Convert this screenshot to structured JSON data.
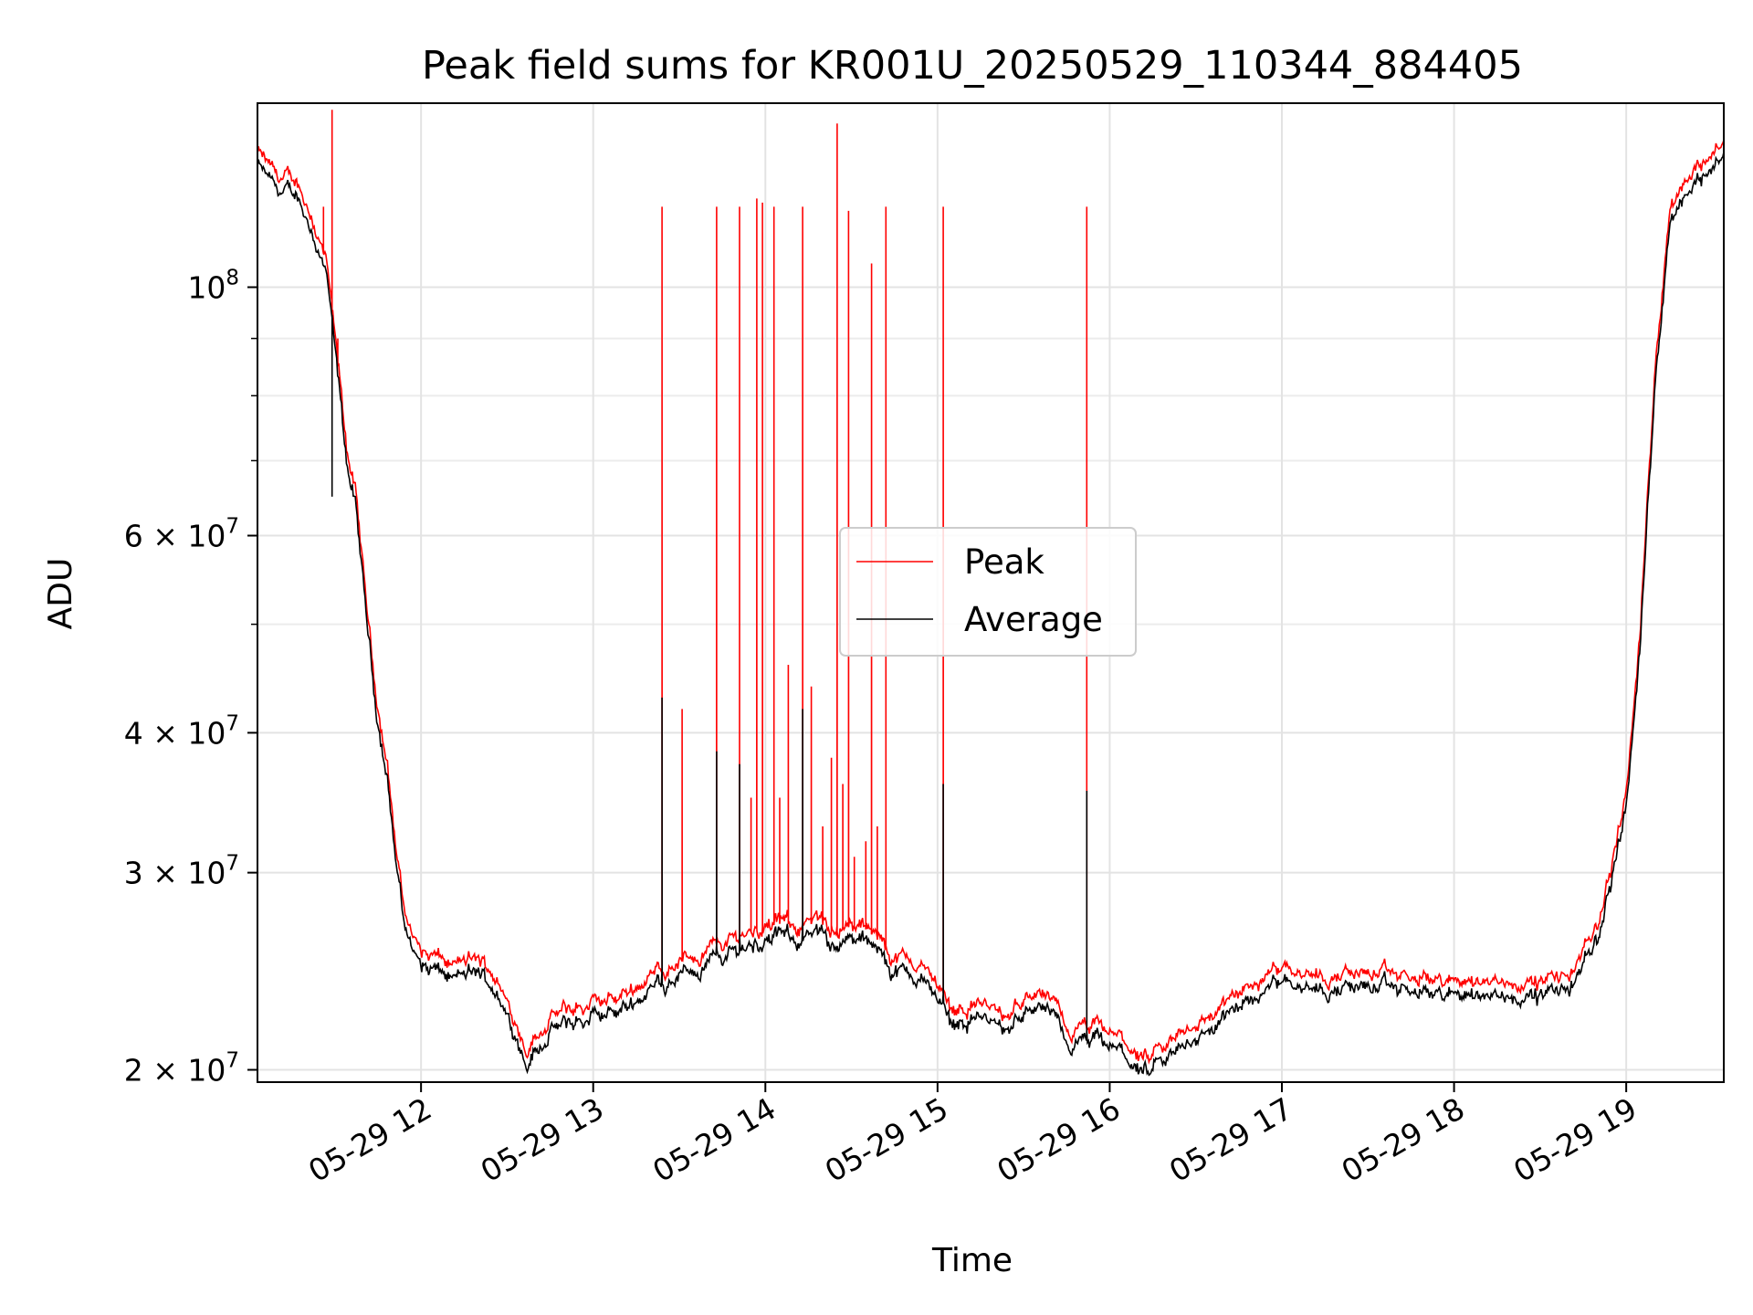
{
  "chart_data": {
    "type": "line",
    "title": "Peak field sums for KR001U_20250529_110344_884405",
    "xlabel": "Time",
    "ylabel": "ADU",
    "yscale": "log",
    "xlim": [
      "2025-05-29 11:03",
      "2025-05-29 19:34"
    ],
    "ylim": [
      19500000,
      146000000
    ],
    "grid": true,
    "legend_position": "center",
    "x_ticks": [
      "05-29 12",
      "05-29 13",
      "05-29 14",
      "05-29 15",
      "05-29 16",
      "05-29 17",
      "05-29 18",
      "05-29 19"
    ],
    "y_ticks": [
      {
        "value": 20000000,
        "label": "2 × 10^7",
        "mantissa": "2",
        "exponent": "7"
      },
      {
        "value": 30000000,
        "label": "3 × 10^7",
        "mantissa": "3",
        "exponent": "7"
      },
      {
        "value": 40000000,
        "label": "4 × 10^7",
        "mantissa": "4",
        "exponent": "7"
      },
      {
        "value": 60000000,
        "label": "6 × 10^7",
        "mantissa": "6",
        "exponent": "7"
      },
      {
        "value": 100000000,
        "label": "10^8",
        "mantissa": "",
        "exponent": "8"
      }
    ],
    "series": [
      {
        "name": "Peak",
        "color": "#ff0000",
        "baseline": [
          [
            "2025-05-29 11:03",
            132000000
          ],
          [
            "2025-05-29 11:10",
            125000000
          ],
          [
            "2025-05-29 11:17",
            124000000
          ],
          [
            "2025-05-29 11:22",
            116000000
          ],
          [
            "2025-05-29 11:27",
            105000000
          ],
          [
            "2025-05-29 11:31",
            85000000
          ],
          [
            "2025-05-29 11:34",
            72000000
          ],
          [
            "2025-05-29 11:37",
            66000000
          ],
          [
            "2025-05-29 11:40",
            55000000
          ],
          [
            "2025-05-29 11:44",
            44000000
          ],
          [
            "2025-05-29 11:48",
            38000000
          ],
          [
            "2025-05-29 11:51",
            32000000
          ],
          [
            "2025-05-29 11:54",
            28000000
          ],
          [
            "2025-05-29 11:57",
            26500000
          ],
          [
            "2025-05-29 12:00",
            25500000
          ],
          [
            "2025-05-29 12:10",
            24800000
          ],
          [
            "2025-05-29 12:20",
            25000000
          ],
          [
            "2025-05-29 12:25",
            24500000
          ],
          [
            "2025-05-29 12:30",
            23000000
          ],
          [
            "2025-05-29 12:37",
            21000000
          ],
          [
            "2025-05-29 12:45",
            22300000
          ],
          [
            "2025-05-29 12:55",
            22700000
          ],
          [
            "2025-05-29 13:05",
            23000000
          ],
          [
            "2025-05-29 13:15",
            23800000
          ],
          [
            "2025-05-29 13:25",
            24700000
          ],
          [
            "2025-05-29 13:35",
            25300000
          ],
          [
            "2025-05-29 13:45",
            26000000
          ],
          [
            "2025-05-29 13:55",
            26700000
          ],
          [
            "2025-05-29 14:05",
            27000000
          ],
          [
            "2025-05-29 14:15",
            27000000
          ],
          [
            "2025-05-29 14:25",
            26900000
          ],
          [
            "2025-05-29 14:35",
            26700000
          ],
          [
            "2025-05-29 14:40",
            26000000
          ],
          [
            "2025-05-29 14:45",
            25300000
          ],
          [
            "2025-05-29 14:55",
            24700000
          ],
          [
            "2025-05-29 15:00",
            23900000
          ],
          [
            "2025-05-29 15:05",
            22700000
          ],
          [
            "2025-05-29 15:15",
            23000000
          ],
          [
            "2025-05-29 15:25",
            22000000
          ],
          [
            "2025-05-29 15:30",
            23500000
          ],
          [
            "2025-05-29 15:40",
            23000000
          ],
          [
            "2025-05-29 15:45",
            21500000
          ],
          [
            "2025-05-29 15:55",
            21800000
          ],
          [
            "2025-05-29 16:05",
            21200000
          ],
          [
            "2025-05-29 16:14",
            20200000
          ],
          [
            "2025-05-29 16:25",
            21600000
          ],
          [
            "2025-05-29 16:40",
            22800000
          ],
          [
            "2025-05-29 16:55",
            24300000
          ],
          [
            "2025-05-29 17:00",
            25000000
          ],
          [
            "2025-05-29 17:15",
            24300000
          ],
          [
            "2025-05-29 17:30",
            24400000
          ],
          [
            "2025-05-29 17:45",
            24100000
          ],
          [
            "2025-05-29 18:00",
            24000000
          ],
          [
            "2025-05-29 18:15",
            24000000
          ],
          [
            "2025-05-29 18:30",
            23900000
          ],
          [
            "2025-05-29 18:40",
            24300000
          ],
          [
            "2025-05-29 18:45",
            25300000
          ],
          [
            "2025-05-29 18:50",
            27000000
          ],
          [
            "2025-05-29 18:55",
            30500000
          ],
          [
            "2025-05-29 19:00",
            35500000
          ],
          [
            "2025-05-29 19:05",
            50000000
          ],
          [
            "2025-05-29 19:10",
            85000000
          ],
          [
            "2025-05-29 19:15",
            117000000
          ],
          [
            "2025-05-29 19:20",
            125000000
          ],
          [
            "2025-05-29 19:25",
            128000000
          ],
          [
            "2025-05-29 19:30",
            133000000
          ],
          [
            "2025-05-29 19:34",
            134000000
          ]
        ],
        "spikes": [
          [
            "2025-05-29 11:26",
            118000000
          ],
          [
            "2025-05-29 11:29",
            144000000
          ],
          [
            "2025-05-29 11:31",
            90000000
          ],
          [
            "2025-05-29 13:24",
            118000000
          ],
          [
            "2025-05-29 13:31",
            42000000
          ],
          [
            "2025-05-29 13:43",
            118000000
          ],
          [
            "2025-05-29 13:51",
            118000000
          ],
          [
            "2025-05-29 13:55",
            35000000
          ],
          [
            "2025-05-29 13:57",
            120000000
          ],
          [
            "2025-05-29 13:59",
            119000000
          ],
          [
            "2025-05-29 14:03",
            118000000
          ],
          [
            "2025-05-29 14:05",
            35000000
          ],
          [
            "2025-05-29 14:08",
            46000000
          ],
          [
            "2025-05-29 14:13",
            118000000
          ],
          [
            "2025-05-29 14:16",
            44000000
          ],
          [
            "2025-05-29 14:20",
            33000000
          ],
          [
            "2025-05-29 14:23",
            38000000
          ],
          [
            "2025-05-29 14:25",
            140000000
          ],
          [
            "2025-05-29 14:27",
            36000000
          ],
          [
            "2025-05-29 14:29",
            117000000
          ],
          [
            "2025-05-29 14:31",
            31000000
          ],
          [
            "2025-05-29 14:35",
            32000000
          ],
          [
            "2025-05-29 14:37",
            105000000
          ],
          [
            "2025-05-29 14:39",
            33000000
          ],
          [
            "2025-05-29 14:42",
            118000000
          ],
          [
            "2025-05-29 15:02",
            118000000
          ],
          [
            "2025-05-29 15:52",
            118000000
          ]
        ]
      },
      {
        "name": "Average",
        "color": "#000000",
        "offset_ratio": 0.972,
        "spikes": [
          [
            "2025-05-29 11:29",
            65000000
          ],
          [
            "2025-05-29 13:24",
            43000000
          ],
          [
            "2025-05-29 13:43",
            38500000
          ],
          [
            "2025-05-29 13:51",
            37500000
          ],
          [
            "2025-05-29 14:13",
            42000000
          ],
          [
            "2025-05-29 15:02",
            36000000
          ],
          [
            "2025-05-29 15:52",
            35500000
          ]
        ]
      }
    ]
  }
}
